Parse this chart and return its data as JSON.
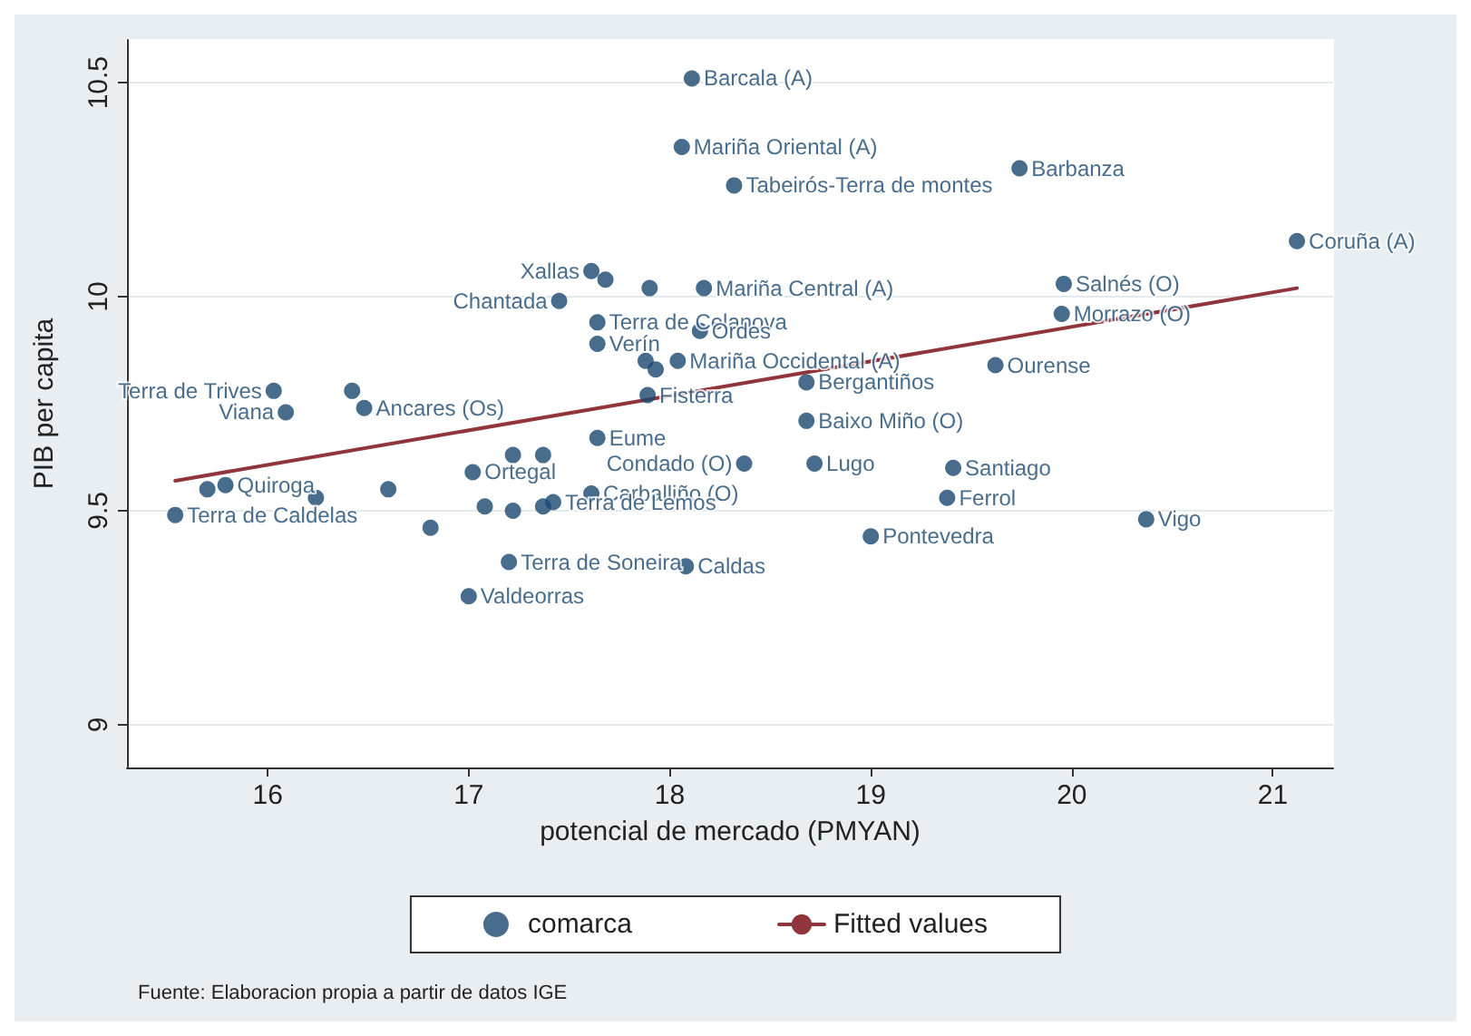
{
  "chart_data": {
    "type": "scatter",
    "xlabel": "potencial de mercado (PMYAN)",
    "ylabel": "PIB per capita",
    "xlim": [
      15.3,
      21.3
    ],
    "xticks": [
      16,
      17,
      18,
      19,
      20,
      21
    ],
    "ylim": [
      8.9,
      10.6
    ],
    "yticks": [
      9,
      9.5,
      10,
      10.5
    ],
    "grid": "y",
    "legend": "bottom",
    "marker": "circle",
    "series": [
      {
        "name": "comarca",
        "color": "#1a476f",
        "x": [
          18.11,
          18.06,
          19.74,
          18.32,
          21.12,
          19.96,
          19.95,
          19.62,
          18.68,
          18.68,
          19.41,
          19.38,
          20.37,
          19.0,
          18.37,
          18.72,
          18.08,
          17.2,
          17.0,
          17.61,
          17.42,
          17.64,
          17.02,
          17.22,
          17.37,
          15.54,
          15.79,
          15.7,
          16.24,
          16.6,
          16.03,
          16.09,
          16.48,
          16.42,
          17.61,
          17.45,
          17.68,
          17.9,
          18.17,
          17.64,
          18.15,
          17.64,
          18.04,
          17.88,
          17.93,
          17.89,
          17.08,
          17.22,
          17.37,
          16.81
        ],
        "values": [
          10.51,
          10.35,
          10.3,
          10.26,
          10.13,
          10.03,
          9.96,
          9.84,
          9.8,
          9.71,
          9.6,
          9.53,
          9.48,
          9.44,
          9.61,
          9.61,
          9.37,
          9.38,
          9.3,
          9.54,
          9.52,
          9.67,
          9.59,
          9.63,
          9.63,
          9.49,
          9.56,
          9.55,
          9.53,
          9.55,
          9.78,
          9.73,
          9.74,
          9.78,
          10.06,
          9.99,
          10.04,
          10.02,
          10.02,
          9.94,
          9.92,
          9.89,
          9.85,
          9.85,
          9.83,
          9.77,
          9.51,
          9.5,
          9.51,
          9.46
        ]
      },
      {
        "name": "Fitted values",
        "type": "line",
        "color": "#90353b",
        "marker": "none",
        "x": [
          15.54,
          21.12
        ],
        "values": [
          9.57,
          10.02
        ]
      }
    ],
    "annotations": [
      {
        "text": "Barcala (A)",
        "x": 18.11,
        "y": 10.51
      },
      {
        "text": "Mariña Oriental (A)",
        "x": 18.06,
        "y": 10.35
      },
      {
        "text": "Barbanza",
        "x": 19.74,
        "y": 10.3
      },
      {
        "text": "Tabeirós-Terra de montes",
        "x": 18.32,
        "y": 10.26
      },
      {
        "text": "Coruña (A)",
        "x": 21.12,
        "y": 10.13
      },
      {
        "text": "Salnés (O)",
        "x": 19.96,
        "y": 10.03
      },
      {
        "text": "Morrazo (O)",
        "x": 19.95,
        "y": 9.96
      },
      {
        "text": "Ourense",
        "x": 19.62,
        "y": 9.84
      },
      {
        "text": "Bergantiños",
        "x": 18.68,
        "y": 9.8
      },
      {
        "text": "Baixo Miño (O)",
        "x": 18.68,
        "y": 9.71
      },
      {
        "text": "Santiago",
        "x": 19.41,
        "y": 9.6
      },
      {
        "text": "Ferrol",
        "x": 19.38,
        "y": 9.53
      },
      {
        "text": "Vigo",
        "x": 20.37,
        "y": 9.48
      },
      {
        "text": "Pontevedra",
        "x": 19.0,
        "y": 9.44
      },
      {
        "text": "Condado (O)",
        "x": 18.37,
        "y": 9.61
      },
      {
        "text": "Lugo",
        "x": 18.72,
        "y": 9.61
      },
      {
        "text": "Caldas",
        "x": 18.08,
        "y": 9.37
      },
      {
        "text": "Terra de Soneira",
        "x": 17.2,
        "y": 9.38
      },
      {
        "text": "Valdeorras",
        "x": 17.0,
        "y": 9.3
      },
      {
        "text": "Carballiño (O)",
        "x": 17.61,
        "y": 9.54
      },
      {
        "text": "Terra de Lemos",
        "x": 17.42,
        "y": 9.52
      },
      {
        "text": "Eume",
        "x": 17.64,
        "y": 9.67
      },
      {
        "text": "Ortegal",
        "x": 17.02,
        "y": 9.59
      },
      {
        "text": "Terra de Caldelas",
        "x": 15.54,
        "y": 9.49
      },
      {
        "text": "Quiroga",
        "x": 15.79,
        "y": 9.56
      },
      {
        "text": "Terra de Trives",
        "x": 16.03,
        "y": 9.78
      },
      {
        "text": "Viana",
        "x": 16.09,
        "y": 9.73
      },
      {
        "text": "Ancares (Os)",
        "x": 16.48,
        "y": 9.74
      },
      {
        "text": "Xallas",
        "x": 17.61,
        "y": 10.06
      },
      {
        "text": "Chantada",
        "x": 17.45,
        "y": 9.99
      },
      {
        "text": "Mariña Central (A)",
        "x": 18.17,
        "y": 10.02
      },
      {
        "text": "Terra de Celanova",
        "x": 17.64,
        "y": 9.94
      },
      {
        "text": "Ordes",
        "x": 18.15,
        "y": 9.92
      },
      {
        "text": "Verín",
        "x": 17.64,
        "y": 9.89
      },
      {
        "text": "Mariña Occidental (A)",
        "x": 18.04,
        "y": 9.85
      },
      {
        "text": "Fisterra",
        "x": 17.89,
        "y": 9.77
      },
      "Fuente: Elaboracion propia a partir de datos IGE"
    ]
  }
}
